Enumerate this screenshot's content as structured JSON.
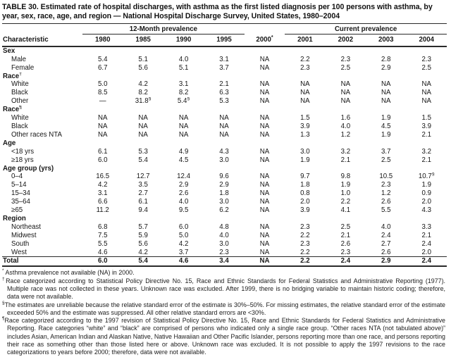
{
  "title": "TABLE 30. Estimated rate of hospital discharges, with asthma as the first listed diagnosis per 100 persons with asthma, by year, sex, race, age, and region — National Hospital Discharge Survey, United States, 1980–2004",
  "table": {
    "col_header": "Characteristic",
    "spanners": [
      {
        "label": "12-Month prevalence",
        "span": 4
      },
      {
        "label": "Current prevalence",
        "span": 4
      }
    ],
    "years": [
      "1980",
      "1985",
      "1990",
      "1995",
      "2000*",
      "2001",
      "2002",
      "2003",
      "2004"
    ],
    "rows": [
      {
        "type": "group",
        "label": "Sex",
        "values": []
      },
      {
        "type": "data",
        "label": "Male",
        "values": [
          "5.4",
          "5.1",
          "4.0",
          "3.1",
          "NA",
          "2.2",
          "2.3",
          "2.8",
          "2.3"
        ]
      },
      {
        "type": "data",
        "label": "Female",
        "values": [
          "6.7",
          "5.6",
          "5.1",
          "3.7",
          "NA",
          "2.3",
          "2.5",
          "2.9",
          "2.5"
        ]
      },
      {
        "type": "group",
        "label": "Race",
        "sup": "†",
        "values": []
      },
      {
        "type": "data",
        "label": "White",
        "values": [
          "5.0",
          "4.2",
          "3.1",
          "2.1",
          "NA",
          "NA",
          "NA",
          "NA",
          "NA"
        ]
      },
      {
        "type": "data",
        "label": "Black",
        "values": [
          "8.5",
          "8.2",
          "8.2",
          "6.3",
          "NA",
          "NA",
          "NA",
          "NA",
          "NA"
        ]
      },
      {
        "type": "data",
        "label": "Other",
        "values": [
          "—",
          "31.8§",
          "5.4§",
          "5.3",
          "NA",
          "NA",
          "NA",
          "NA",
          "NA"
        ]
      },
      {
        "type": "group",
        "label": "Race",
        "sup": "¶",
        "values": []
      },
      {
        "type": "data",
        "label": "White",
        "values": [
          "NA",
          "NA",
          "NA",
          "NA",
          "NA",
          "1.5",
          "1.6",
          "1.9",
          "1.5"
        ]
      },
      {
        "type": "data",
        "label": "Black",
        "values": [
          "NA",
          "NA",
          "NA",
          "NA",
          "NA",
          "3.9",
          "4.0",
          "4.5",
          "3.9"
        ]
      },
      {
        "type": "data",
        "label": "Other races NTA",
        "values": [
          "NA",
          "NA",
          "NA",
          "NA",
          "NA",
          "1.3",
          "1.2",
          "1.9",
          "2.1"
        ]
      },
      {
        "type": "group",
        "label": "Age",
        "values": []
      },
      {
        "type": "data",
        "label": "<18 yrs",
        "values": [
          "6.1",
          "5.3",
          "4.9",
          "4.3",
          "NA",
          "3.0",
          "3.2",
          "3.7",
          "3.2"
        ]
      },
      {
        "type": "data",
        "label": "≥18 yrs",
        "values": [
          "6.0",
          "5.4",
          "4.5",
          "3.0",
          "NA",
          "1.9",
          "2.1",
          "2.5",
          "2.1"
        ]
      },
      {
        "type": "group",
        "label": "Age group (yrs)",
        "values": []
      },
      {
        "type": "data",
        "label": "0–4",
        "values": [
          "16.5",
          "12.7",
          "12.4",
          "9.6",
          "NA",
          "9.7",
          "9.8",
          "10.5",
          "10.7§"
        ]
      },
      {
        "type": "data",
        "label": "5–14",
        "values": [
          "4.2",
          "3.5",
          "2.9",
          "2.9",
          "NA",
          "1.8",
          "1.9",
          "2.3",
          "1.9"
        ]
      },
      {
        "type": "data",
        "label": "15–34",
        "values": [
          "3.1",
          "2.7",
          "2.6",
          "1.8",
          "NA",
          "0.8",
          "1.0",
          "1.2",
          "0.9"
        ]
      },
      {
        "type": "data",
        "label": "35–64",
        "values": [
          "6.6",
          "6.1",
          "4.0",
          "3.0",
          "NA",
          "2.0",
          "2.2",
          "2.6",
          "2.0"
        ]
      },
      {
        "type": "data",
        "label": "≥65",
        "values": [
          "11.2",
          "9.4",
          "9.5",
          "6.2",
          "NA",
          "3.9",
          "4.1",
          "5.5",
          "4.3"
        ]
      },
      {
        "type": "group",
        "label": "Region",
        "values": []
      },
      {
        "type": "data",
        "label": "Northeast",
        "values": [
          "6.8",
          "5.7",
          "6.0",
          "4.8",
          "NA",
          "2.3",
          "2.5",
          "4.0",
          "3.3"
        ]
      },
      {
        "type": "data",
        "label": "Midwest",
        "values": [
          "7.5",
          "5.9",
          "5.0",
          "4.0",
          "NA",
          "2.2",
          "2.1",
          "2.4",
          "2.1"
        ]
      },
      {
        "type": "data",
        "label": "South",
        "values": [
          "5.5",
          "5.6",
          "4.2",
          "3.0",
          "NA",
          "2.3",
          "2.6",
          "2.7",
          "2.4"
        ]
      },
      {
        "type": "data",
        "label": "West",
        "values": [
          "4.6",
          "4.2",
          "3.7",
          "2.3",
          "NA",
          "2.2",
          "2.3",
          "2.6",
          "2.0"
        ]
      },
      {
        "type": "total",
        "label": "Total",
        "values": [
          "6.0",
          "5.4",
          "4.6",
          "3.4",
          "NA",
          "2.2",
          "2.4",
          "2.9",
          "2.4"
        ]
      }
    ]
  },
  "footnotes": [
    {
      "marker": "*",
      "text": " Asthma prevalence not available (NA) in 2000."
    },
    {
      "marker": "†",
      "text": "Race categorized according to Statistical Policy Directive No. 15, Race and Ethnic Standards for Federal Statistics and Administrative Reporting (1977). Multiple race was not collected in these years. Unknown race was excluded. After 1999, there is no bridging variable to maintain historic coding; therefore, data were not available."
    },
    {
      "marker": "§",
      "text": "The estimates are unreliable because the relative standard error of the estimate is 30%–50%. For missing estimates, the relative standard error of the estimate exceeded 50% and the estimate was suppressed. All other relative standard errors are <30%."
    },
    {
      "marker": "¶",
      "text": "Race categorized according to the 1997 revision of Statistical Policy Directive No. 15, Race and Ethnic Standards for Federal Statistics and Administrative Reporting. Race categories “white” and “black” are comprised of persons who indicated only a single race group. “Other races NTA (not tabulated above)” includes Asian, American Indian and Alaskan Native, Native Hawaiian and Other Pacific Islander, persons reporting more than one race, and persons reporting their race as something other than those listed here or above. Unknown race was excluded. It is not possible to apply the 1997 revisions to the race categorizations to years before 2000; therefore, data were not available."
    }
  ]
}
